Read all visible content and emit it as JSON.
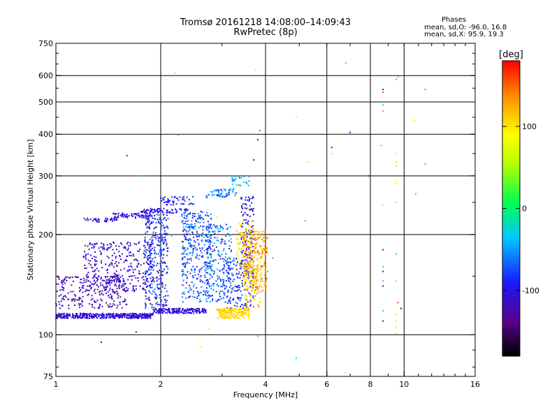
{
  "chart_data": {
    "type": "scatter",
    "title": "Tromsø 20161218 14:08:00–14:09:43",
    "subtitle": "RwPretec (8p)",
    "xlabel": "Frequency [MHz]",
    "ylabel": "Stationary phase Virtual Height [km]",
    "x_scale": "log",
    "y_scale": "log",
    "xlim": [
      1,
      16
    ],
    "ylim": [
      75,
      750
    ],
    "x_ticks": [
      1,
      2,
      4,
      6,
      8,
      10,
      16
    ],
    "x_tick_labels": [
      "1",
      "2",
      "4",
      "6",
      "8",
      "10",
      "16"
    ],
    "y_ticks": [
      75,
      100,
      200,
      300,
      400,
      500,
      600,
      750
    ],
    "y_tick_labels": [
      "75",
      "100",
      "200",
      "300",
      "400",
      "500",
      "600",
      "750"
    ],
    "grid": true,
    "phases": {
      "title": "Phases",
      "line_O": "mean, sd,O: -96.0, 16.8",
      "line_X": "mean, sd,X:  95.9, 19.3"
    },
    "colorbar": {
      "label": "[deg]",
      "range": [
        -180,
        180
      ],
      "ticks": [
        100,
        0,
        -100
      ],
      "tick_labels": [
        "100",
        "0",
        "-100"
      ]
    },
    "clusters": [
      {
        "f": [
          1.0,
          1.9
        ],
        "h": [
          112,
          116
        ],
        "phase": [
          -115,
          -100
        ],
        "n": 420,
        "shape": "line"
      },
      {
        "f": [
          1.9,
          2.7
        ],
        "h": [
          116,
          120
        ],
        "phase": [
          -115,
          -95
        ],
        "n": 180,
        "shape": "line"
      },
      {
        "f": [
          1.0,
          1.6
        ],
        "h": [
          120,
          150
        ],
        "phase": [
          -140,
          -100
        ],
        "n": 260,
        "shape": "band"
      },
      {
        "f": [
          1.2,
          1.9
        ],
        "h": [
          135,
          190
        ],
        "phase": [
          -130,
          -95
        ],
        "n": 300,
        "shape": "band"
      },
      {
        "f": [
          1.8,
          2.1
        ],
        "h": [
          120,
          230
        ],
        "phase": [
          -120,
          -60
        ],
        "n": 320,
        "shape": "band"
      },
      {
        "f": [
          2.3,
          2.8
        ],
        "h": [
          125,
          235
        ],
        "phase": [
          -110,
          -40
        ],
        "n": 360,
        "shape": "band"
      },
      {
        "f": [
          2.7,
          3.2
        ],
        "h": [
          125,
          215
        ],
        "phase": [
          -100,
          -30
        ],
        "n": 200,
        "shape": "band"
      },
      {
        "f": [
          1.2,
          1.5
        ],
        "h": [
          218,
          224
        ],
        "phase": [
          -110,
          -100
        ],
        "n": 40,
        "shape": "band"
      },
      {
        "f": [
          1.45,
          1.9
        ],
        "h": [
          224,
          232
        ],
        "phase": [
          -110,
          -95
        ],
        "n": 70,
        "shape": "band"
      },
      {
        "f": [
          1.75,
          2.4
        ],
        "h": [
          232,
          240
        ],
        "phase": [
          -110,
          -90
        ],
        "n": 70,
        "shape": "band"
      },
      {
        "f": [
          2.0,
          2.5
        ],
        "h": [
          245,
          260
        ],
        "phase": [
          -105,
          -80
        ],
        "n": 50,
        "shape": "band"
      },
      {
        "f": [
          2.7,
          3.3
        ],
        "h": [
          258,
          275
        ],
        "phase": [
          -90,
          -30
        ],
        "n": 60,
        "shape": "band"
      },
      {
        "f": [
          3.2,
          3.6
        ],
        "h": [
          280,
          300
        ],
        "phase": [
          -70,
          -20
        ],
        "n": 25,
        "shape": "band"
      },
      {
        "f": [
          2.9,
          3.6
        ],
        "h": [
          112,
          120
        ],
        "phase": [
          90,
          120
        ],
        "n": 220,
        "shape": "band"
      },
      {
        "f": [
          3.0,
          3.7
        ],
        "h": [
          120,
          170
        ],
        "phase": [
          -105,
          -60
        ],
        "n": 160,
        "shape": "band"
      },
      {
        "f": [
          3.4,
          3.7
        ],
        "h": [
          150,
          260
        ],
        "phase": [
          -120,
          -80
        ],
        "n": 120,
        "shape": "band"
      },
      {
        "f": [
          3.3,
          3.7
        ],
        "h": [
          160,
          220
        ],
        "phase": [
          80,
          120
        ],
        "n": 80,
        "shape": "band"
      },
      {
        "f": [
          3.45,
          4.05
        ],
        "h": [
          135,
          205
        ],
        "phase": [
          90,
          160
        ],
        "n": 260,
        "shape": "band"
      },
      {
        "f": [
          3.45,
          3.9
        ],
        "h": [
          120,
          165
        ],
        "phase": [
          80,
          140
        ],
        "n": 100,
        "shape": "band"
      }
    ],
    "points": [
      {
        "f": 1.6,
        "h": 345,
        "phase": -110
      },
      {
        "f": 1.75,
        "h": 300,
        "phase": -20
      },
      {
        "f": 2.25,
        "h": 398,
        "phase": -20
      },
      {
        "f": 2.2,
        "h": 610,
        "phase": 110
      },
      {
        "f": 3.75,
        "h": 625,
        "phase": 100
      },
      {
        "f": 3.8,
        "h": 385,
        "phase": -140
      },
      {
        "f": 3.85,
        "h": 410,
        "phase": 160
      },
      {
        "f": 3.7,
        "h": 335,
        "phase": -130
      },
      {
        "f": 4.9,
        "h": 450,
        "phase": 100
      },
      {
        "f": 5.3,
        "h": 330,
        "phase": 100
      },
      {
        "f": 5.2,
        "h": 220,
        "phase": -20
      },
      {
        "f": 4.9,
        "h": 85,
        "phase": -20
      },
      {
        "f": 6.8,
        "h": 655,
        "phase": -20
      },
      {
        "f": 7.0,
        "h": 405,
        "phase": -110
      },
      {
        "f": 6.2,
        "h": 365,
        "phase": -110
      },
      {
        "f": 6.2,
        "h": 350,
        "phase": 110
      },
      {
        "f": 7.9,
        "h": 300,
        "phase": -110
      },
      {
        "f": 6.8,
        "h": 77,
        "phase": 100
      },
      {
        "f": 2.6,
        "h": 92,
        "phase": 100
      },
      {
        "f": 1.7,
        "h": 102,
        "phase": -110
      },
      {
        "f": 1.35,
        "h": 95,
        "phase": -140
      },
      {
        "f": 2.75,
        "h": 104,
        "phase": 100
      },
      {
        "f": 3.8,
        "h": 99,
        "phase": -20
      },
      {
        "f": 8.7,
        "h": 545,
        "phase": -110
      },
      {
        "f": 8.7,
        "h": 535,
        "phase": 160
      },
      {
        "f": 8.7,
        "h": 490,
        "phase": -20
      },
      {
        "f": 8.7,
        "h": 470,
        "phase": 140
      },
      {
        "f": 8.6,
        "h": 370,
        "phase": 130
      },
      {
        "f": 8.7,
        "h": 245,
        "phase": 100
      },
      {
        "f": 8.7,
        "h": 180,
        "phase": -110
      },
      {
        "f": 8.7,
        "h": 160,
        "phase": -20
      },
      {
        "f": 8.7,
        "h": 155,
        "phase": -110
      },
      {
        "f": 8.7,
        "h": 145,
        "phase": -20
      },
      {
        "f": 8.7,
        "h": 140,
        "phase": -110
      },
      {
        "f": 8.7,
        "h": 118,
        "phase": -20
      },
      {
        "f": 8.7,
        "h": 110,
        "phase": -110
      },
      {
        "f": 9.5,
        "h": 585,
        "phase": -20
      },
      {
        "f": 9.6,
        "h": 595,
        "phase": 120
      },
      {
        "f": 9.5,
        "h": 350,
        "phase": 60
      },
      {
        "f": 9.5,
        "h": 330,
        "phase": 100
      },
      {
        "f": 9.5,
        "h": 320,
        "phase": 110
      },
      {
        "f": 9.5,
        "h": 290,
        "phase": 90
      },
      {
        "f": 9.5,
        "h": 285,
        "phase": 80
      },
      {
        "f": 9.5,
        "h": 250,
        "phase": 40
      },
      {
        "f": 9.5,
        "h": 175,
        "phase": -20
      },
      {
        "f": 9.5,
        "h": 145,
        "phase": 40
      },
      {
        "f": 9.6,
        "h": 125,
        "phase": 160
      },
      {
        "f": 9.5,
        "h": 115,
        "phase": 60
      },
      {
        "f": 9.5,
        "h": 110,
        "phase": 100
      },
      {
        "f": 9.5,
        "h": 105,
        "phase": 110
      },
      {
        "f": 9.5,
        "h": 101,
        "phase": 100
      },
      {
        "f": 9.8,
        "h": 120,
        "phase": -140
      },
      {
        "f": 10.7,
        "h": 440,
        "phase": 60
      },
      {
        "f": 10.8,
        "h": 265,
        "phase": -20
      },
      {
        "f": 11.5,
        "h": 545,
        "phase": -20
      },
      {
        "f": 11.5,
        "h": 325,
        "phase": -20
      },
      {
        "f": 2.9,
        "h": 225,
        "phase": 110
      },
      {
        "f": 2.15,
        "h": 198,
        "phase": -20
      },
      {
        "f": 3.55,
        "h": 240,
        "phase": 140
      },
      {
        "f": 4.2,
        "h": 170,
        "phase": 150
      }
    ]
  }
}
